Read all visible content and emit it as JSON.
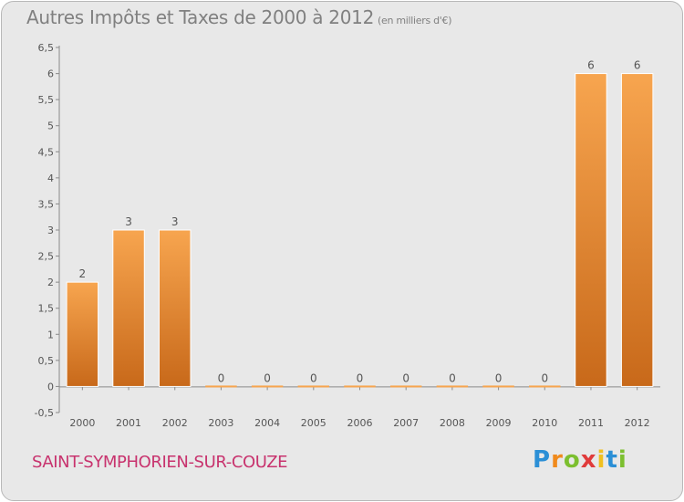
{
  "chart_data": {
    "type": "bar",
    "title": "Autres Impôts et Taxes de 2000 à 2012",
    "unit_label": "(en milliers d'€)",
    "xlabel": "",
    "ylabel": "",
    "categories": [
      "2000",
      "2001",
      "2002",
      "2003",
      "2004",
      "2005",
      "2006",
      "2007",
      "2008",
      "2009",
      "2010",
      "2011",
      "2012"
    ],
    "values": [
      2,
      3,
      3,
      0,
      0,
      0,
      0,
      0,
      0,
      0,
      0,
      6,
      6
    ],
    "data_labels": [
      "2",
      "3",
      "3",
      "0",
      "0",
      "0",
      "0",
      "0",
      "0",
      "0",
      "0",
      "6",
      "6"
    ],
    "yticks": [
      -0.5,
      0,
      0.5,
      1,
      1.5,
      2,
      2.5,
      3,
      3.5,
      4,
      4.5,
      5,
      5.5,
      6,
      6.5
    ],
    "ytick_labels": [
      "-0,5",
      "0",
      "0,5",
      "1",
      "1,5",
      "2",
      "2,5",
      "3",
      "3,5",
      "4",
      "4,5",
      "5",
      "5,5",
      "6",
      "6,5"
    ],
    "ylim": [
      -0.5,
      6.5
    ],
    "grid": false,
    "legend": "none",
    "bar_color_light": "#f7a54f",
    "bar_color_dark": "#c8691a"
  },
  "footer": {
    "commune": "SAINT-SYMPHORIEN-SUR-COUZE"
  },
  "logo": {
    "text": "Proxiti",
    "letters": [
      "P",
      "r",
      "o",
      "x",
      "i",
      "t",
      "i"
    ],
    "colors": [
      "#2b8fd6",
      "#f08a1c",
      "#7cbf2f",
      "#e03b3b",
      "#f0c020",
      "#2b8fd6",
      "#7cbf2f"
    ]
  }
}
